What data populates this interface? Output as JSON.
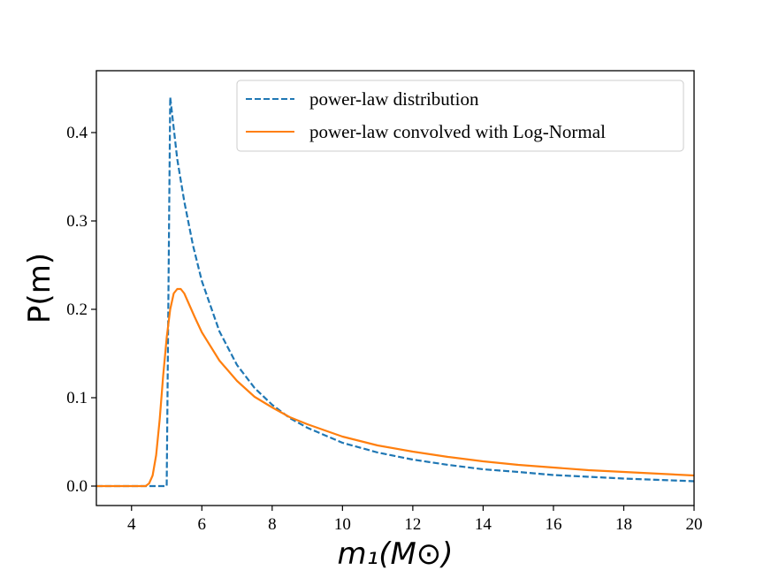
{
  "chart_data": {
    "type": "line",
    "title": "",
    "xlabel": "m₁(M⊙)",
    "ylabel": "P(m)",
    "xlim": [
      3,
      20
    ],
    "ylim": [
      -0.022,
      0.47
    ],
    "grid": false,
    "legend_position": "top-right",
    "x_ticks": [
      4,
      6,
      8,
      10,
      12,
      14,
      16,
      18,
      20
    ],
    "x_tick_labels": [
      "4",
      "6",
      "8",
      "10",
      "12",
      "14",
      "16",
      "18",
      "20"
    ],
    "y_ticks": [
      0.0,
      0.1,
      0.2,
      0.3,
      0.4
    ],
    "y_tick_labels": [
      "0.0",
      "0.1",
      "0.2",
      "0.3",
      "0.4"
    ],
    "series": [
      {
        "name": "power-law distribution",
        "color": "#1f77b4",
        "style": "dashed",
        "x": [
          3.0,
          4.5,
          4.99,
          5.0,
          5.1,
          5.3,
          5.5,
          5.75,
          6.0,
          6.5,
          7.0,
          7.5,
          8.0,
          8.5,
          9.0,
          10.0,
          11.0,
          12.0,
          13.0,
          14.0,
          15.0,
          16.0,
          17.0,
          18.0,
          19.0,
          20.0
        ],
        "y": [
          0.0,
          0.0,
          0.0,
          0.0,
          0.44,
          0.37,
          0.322,
          0.272,
          0.232,
          0.175,
          0.137,
          0.111,
          0.092,
          0.077,
          0.066,
          0.049,
          0.038,
          0.03,
          0.024,
          0.019,
          0.016,
          0.0125,
          0.0105,
          0.0085,
          0.007,
          0.0055
        ]
      },
      {
        "name": "power-law convolved with Log-Normal",
        "color": "#ff7f0e",
        "style": "solid",
        "x": [
          3.0,
          4.4,
          4.5,
          4.6,
          4.7,
          4.8,
          4.9,
          5.0,
          5.1,
          5.2,
          5.3,
          5.4,
          5.5,
          5.6,
          5.8,
          6.0,
          6.5,
          7.0,
          7.5,
          8.0,
          8.5,
          9.0,
          10.0,
          11.0,
          12.0,
          13.0,
          14.0,
          15.0,
          16.0,
          17.0,
          18.0,
          19.0,
          20.0
        ],
        "y": [
          0.0,
          0.0,
          0.003,
          0.012,
          0.035,
          0.075,
          0.125,
          0.168,
          0.2,
          0.218,
          0.223,
          0.223,
          0.218,
          0.209,
          0.191,
          0.174,
          0.142,
          0.119,
          0.101,
          0.089,
          0.078,
          0.07,
          0.056,
          0.046,
          0.039,
          0.033,
          0.028,
          0.024,
          0.021,
          0.018,
          0.016,
          0.014,
          0.012
        ]
      }
    ]
  }
}
